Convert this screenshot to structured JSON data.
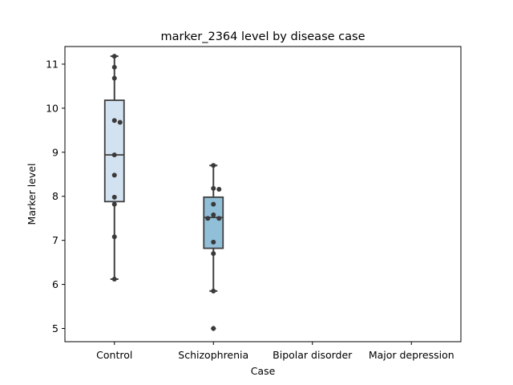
{
  "chart_data": {
    "type": "box",
    "title": "marker_2364 level by disease case",
    "xlabel": "Case",
    "ylabel": "Marker level",
    "categories": [
      "Control",
      "Schizophrenia",
      "Bipolar disorder",
      "Major depression"
    ],
    "ylim": [
      4.7,
      11.4
    ],
    "yticks": [
      5,
      6,
      7,
      8,
      9,
      10,
      11
    ],
    "grid": false,
    "boxes": [
      {
        "category": "Control",
        "whisker_low": 6.12,
        "q1": 7.88,
        "median": 8.94,
        "q3": 10.18,
        "whisker_high": 11.18,
        "outliers": [],
        "points": [
          11.18,
          10.93,
          10.68,
          9.72,
          9.68,
          8.94,
          8.48,
          7.98,
          7.82,
          7.08,
          6.12
        ]
      },
      {
        "category": "Schizophrenia",
        "whisker_low": 5.85,
        "q1": 6.82,
        "median": 7.52,
        "q3": 7.98,
        "whisker_high": 8.7,
        "outliers": [
          5.0
        ],
        "points": [
          8.7,
          8.18,
          8.16,
          7.82,
          7.58,
          7.5,
          7.5,
          6.96,
          6.7,
          5.85,
          5.0
        ]
      }
    ],
    "colors": {
      "Control": "#d3e2f0",
      "Schizophrenia": "#92bfd8",
      "edge": "#3f3f3f",
      "points": "#3a3a3a"
    }
  }
}
